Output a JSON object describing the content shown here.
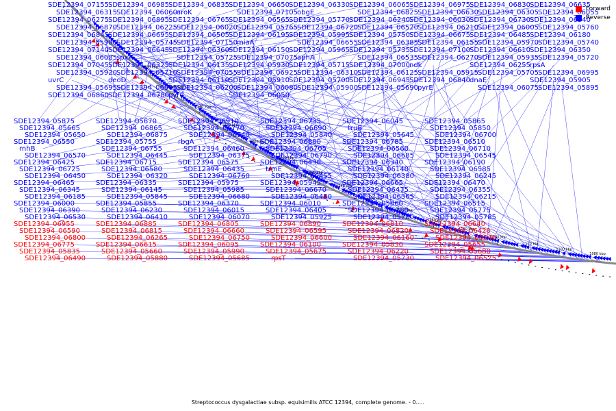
{
  "legend": {
    "forward": {
      "label": "Forward",
      "color": "#ff0000"
    },
    "reverse": {
      "label": "Reverse",
      "color": "#0000ff"
    }
  },
  "caption": "Streptococcus dysgalactiae subsp. equisimilis ATCC 12394, complete genome. - 0.....",
  "ticks": [
    "1380 kbp",
    "1360 kbp",
    "1340 kbp",
    "1320 kbp",
    "1300 kbp",
    "1280 kbp",
    "1260 kbp",
    "1240 kbp",
    "1220 kbp",
    "1200 kbp",
    "1180 kbp",
    "1160 kbp",
    "1140 kbp",
    "1120 kbp",
    "1100 kbp",
    "1080 kbp"
  ],
  "blue_labels": [
    "SDE12394_07155",
    "SDE12394_06985",
    "SDE12394_06835",
    "SDE12394_06650",
    "SDE12394_06330",
    "SDE12394_06065",
    "SDE12394_06975",
    "SDE12394_06830",
    "SDE12394_06635",
    "SDE12394_06315",
    "SDE12394_06060",
    "aroK",
    "SDE12394_07105",
    "obgE",
    "SDE12394_06825",
    "SDE12394_06630",
    "SDE12394_06305",
    "SDE12394_06055",
    "SDE12394_06275",
    "SDE12394_06895",
    "SDE12394_06765",
    "SDE12394_06565",
    "SDE12394_05770",
    "SDE12394_06240",
    "SDE12394_06030",
    "SDE12394_06730",
    "SDE12394_06540",
    "SDE12394_06870",
    "SDE12394_06225",
    "SDE12394_06020",
    "SDE12394_05765",
    "SDE12394_06720",
    "SDE12394_06520",
    "SDE12394_06210",
    "SDE12394_06005",
    "SDE12394_05760",
    "SDE12394_06845",
    "SDE12394_06695",
    "SDE12394_06505",
    "SDE12394_06195",
    "SDE12394_05995",
    "SDE12394_05750",
    "SDE12394_06675",
    "SDE12394_06485",
    "SDE12394_06180",
    "SDE12394_05980",
    "SDE12394_05745",
    "SDE12394_07150",
    "miaA",
    "SDE12394_06655",
    "SDE12394_06385",
    "SDE12394_06155",
    "SDE12394_05970",
    "SDE12394_05740",
    "SDE12394_07140",
    "SDE12394_06645",
    "SDE12394_06360",
    "SDE12394_06150",
    "SDE12394_05965",
    "SDE12394_05735",
    "SDE12394_07100",
    "SDE12394_06610",
    "SDE12394_06350",
    "SDE12394_06085",
    "spxA",
    "SDE12394_05725",
    "SDE12394_07075",
    "aphA",
    "SDE12394_06535",
    "SDE12394_06270",
    "SDE12394_05935",
    "SDE12394_05720",
    "SDE12394_07045",
    "SDE12394_06325",
    "SDE12394_06135",
    "SDE12394_05930",
    "SDE12394_05715",
    "SDE12394_07000",
    "ndk",
    "SDE12394_06255",
    "rpsA",
    "SDE12394_05920",
    "SDE12394_05710",
    "SDE12394_07055",
    "SDE12394_06925",
    "SDE12394_06310",
    "SDE12394_06125",
    "SDE12394_05915",
    "SDE12394_05705",
    "SDE12394_06995",
    "uvrC",
    "deoD",
    "SDE12394_06110",
    "SDE12394_05910",
    "SDE12394_05700",
    "SDE12394_06945",
    "SDE12394_06840",
    "dnaE",
    "SDE12394_05905",
    "SDE12394_05695",
    "SDE12394_06905",
    "SDE12394_06200",
    "SDE12394_06080",
    "SDE12394_05900",
    "SDE12394_05690",
    "pyrE",
    "SDE12394_06075",
    "SDE12394_05895",
    "SDE12394_06860",
    "SDE12394_06780",
    "pyrC",
    "SDE12394_06050",
    "SDE12394_05875",
    "SDE12394_05670",
    "SDE12394_06910",
    "SDE12394_06735",
    "SDE12394_06045",
    "SDE12394_05865",
    "SDE12394_05665",
    "SDE12394_06865",
    "SDE12394_06770",
    "SDE12394_06690",
    "truB",
    "SDE12394_05850",
    "SDE12394_05650",
    "SDE12394_06875",
    "SDE12394_06740",
    "SDE12394_05840",
    "SDE12394_05645",
    "SDE12394_06700",
    "SDE12394_06550",
    "SDE12394_05755",
    "rbgA",
    "SDE12394_06880",
    "SDE12394_06785",
    "SDE12394_06510",
    "rnhB",
    "SDE12394_06755",
    "SDE12394_06460",
    "SDE12394_06705",
    "SDE12394_06560",
    "SDE12394_06710",
    "SDE12394_06570",
    "SDE12394_06445",
    "SDE12394_06375",
    "SDE12394_06790",
    "SDE12394_06685",
    "SDE12394_06545",
    "SDE12394_06425",
    "SDE12394_06715",
    "SDE12394_06575",
    "SDE12394_06430",
    "SDE12394_06340",
    "SDE12394_06190",
    "SDE12394_06725",
    "SDE12394_06580",
    "SDE12394_06435",
    "trmE",
    "SDE12394_06140",
    "SDE12394_06585",
    "SDE12394_06450",
    "SDE12394_06320",
    "SDE12394_06760",
    "SDE12394_06455",
    "SDE12394_06380",
    "SDE12394_06245",
    "SDE12394_06465",
    "SDE12394_06335",
    "SDE12394_05975",
    "SDE12394_05945",
    "SDE12394_06665",
    "SDE12394_06470",
    "SDE12394_06345",
    "SDE12394_06145",
    "SDE12394_05985",
    "SDE12394_06670",
    "SDE12394_06475",
    "SDE12394_06355",
    "SDE12394_06185",
    "SDE12394_05845",
    "SDE12394_06680",
    "SDE12394_06480",
    "SDE12394_06365",
    "SDE12394_06215",
    "SDE12394_06000",
    "SDE12394_05855",
    "SDE12394_06370",
    "SDE12394_06010",
    "SDE12394_05860",
    "SDE12394_06515",
    "SDE12394_06390",
    "SDE12394_06230",
    "SDE12394_06015",
    "SDE12394_06405",
    "SDE12394_06250",
    "SDE12394_05775",
    "SDE12394_06530",
    "SDE12394_06410",
    "SDE12394_06070",
    "SDE12394_05925",
    "SDE12394_05780",
    "SDE12394_05785"
  ],
  "red_labels": [
    "SDE12394_06955",
    "SDE12394_06885",
    "SDE12394_06805",
    "SDE12394_06890",
    "SDE12394_06810",
    "SDE12394_06640",
    "SDE12394_06590",
    "SDE12394_06815",
    "SDE12394_06660",
    "SDE12394_06595",
    "SDE12394_06820",
    "SDE12394_06420",
    "SDE12394_06800",
    "SDE12394_06265",
    "SDE12394_06750",
    "SDE12394_06600",
    "SDE12394_06160",
    "SDE12394_06040",
    "SDE12394_06775",
    "SDE12394_06615",
    "SDE12394_06095",
    "SDE12394_06100",
    "SDE12394_05830",
    "SDE12394_05655",
    "SDE12394_05835",
    "SDE12394_05660",
    "SDE12394_05990",
    "SDE12394_05675",
    "SDE12394_06220",
    "SDE12394_05680",
    "SDE12394_06490",
    "SDE12394_05880",
    "SDE12394_05685",
    "rpsT",
    "SDE12394_05730",
    "SDE12394_06525"
  ]
}
